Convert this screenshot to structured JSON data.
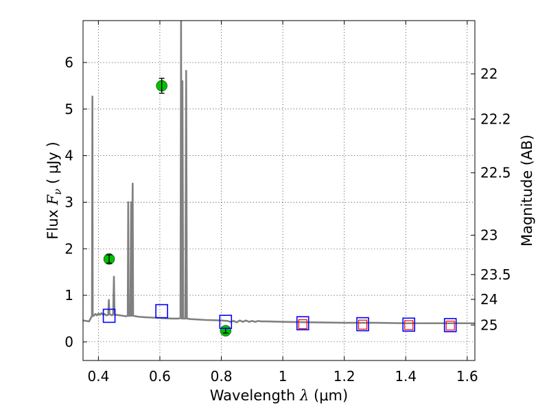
{
  "chart_data": {
    "type": "scatter",
    "xlabel": {
      "prefix": "Wavelength  ",
      "symbol": "λ",
      "units": " (μm)"
    },
    "ylabel": {
      "prefix": "Flux  ",
      "symbol": "F",
      "subscript": "ν",
      "units": "  ( μJy )"
    },
    "y2label": "Magnitude (AB)",
    "xlim": [
      0.35,
      1.625
    ],
    "ylim": [
      -0.4,
      6.9
    ],
    "x_ticks": [
      0.4,
      0.6,
      0.8,
      1,
      1.2,
      1.4,
      1.6
    ],
    "x_tick_labels": [
      "0.4",
      "0.6",
      "0.8",
      "1",
      "1.2",
      "1.4",
      "1.6"
    ],
    "y_ticks": [
      0,
      1,
      2,
      3,
      4,
      5,
      6
    ],
    "y_tick_labels": [
      "0",
      "1",
      "2",
      "3",
      "4",
      "5",
      "6"
    ],
    "y2_ticks": [
      {
        "mag": 22,
        "label": "22"
      },
      {
        "mag": 22.2,
        "label": "22.2"
      },
      {
        "mag": 22.5,
        "label": "22.5"
      },
      {
        "mag": 23,
        "label": "23"
      },
      {
        "mag": 23.5,
        "label": "23.5"
      },
      {
        "mag": 24,
        "label": "24"
      },
      {
        "mag": 25,
        "label": "25"
      }
    ],
    "grid": true,
    "series": [
      {
        "kind": "spectrum",
        "color": "#808080",
        "points": [
          [
            0.35,
            0.46
          ],
          [
            0.36,
            0.45
          ],
          [
            0.37,
            0.44
          ],
          [
            0.372,
            0.47
          ],
          [
            0.376,
            0.52
          ],
          [
            0.379,
            0.55
          ],
          [
            0.3805,
            5.27
          ],
          [
            0.3815,
            0.56
          ],
          [
            0.385,
            0.56
          ],
          [
            0.39,
            0.6
          ],
          [
            0.395,
            0.57
          ],
          [
            0.4,
            0.61
          ],
          [
            0.405,
            0.58
          ],
          [
            0.41,
            0.62
          ],
          [
            0.415,
            0.58
          ],
          [
            0.42,
            0.6
          ],
          [
            0.425,
            0.57
          ],
          [
            0.432,
            0.58
          ],
          [
            0.434,
            0.9
          ],
          [
            0.436,
            0.6
          ],
          [
            0.44,
            0.58
          ],
          [
            0.445,
            0.57
          ],
          [
            0.448,
            0.6
          ],
          [
            0.4505,
            1.4
          ],
          [
            0.4525,
            0.58
          ],
          [
            0.46,
            0.58
          ],
          [
            0.47,
            0.57
          ],
          [
            0.48,
            0.56
          ],
          [
            0.49,
            0.55
          ],
          [
            0.4955,
            0.56
          ],
          [
            0.497,
            3.0
          ],
          [
            0.4985,
            0.56
          ],
          [
            0.504,
            0.56
          ],
          [
            0.5065,
            3.0
          ],
          [
            0.508,
            0.56
          ],
          [
            0.5115,
            3.4
          ],
          [
            0.513,
            0.56
          ],
          [
            0.53,
            0.54
          ],
          [
            0.55,
            0.53
          ],
          [
            0.58,
            0.52
          ],
          [
            0.61,
            0.51
          ],
          [
            0.64,
            0.5
          ],
          [
            0.66,
            0.5
          ],
          [
            0.667,
            0.51
          ],
          [
            0.669,
            6.9
          ],
          [
            0.671,
            0.5
          ],
          [
            0.6735,
            5.6
          ],
          [
            0.676,
            0.5
          ],
          [
            0.683,
            0.5
          ],
          [
            0.6855,
            5.82
          ],
          [
            0.688,
            0.5
          ],
          [
            0.7,
            0.49
          ],
          [
            0.75,
            0.47
          ],
          [
            0.8,
            0.46
          ],
          [
            0.82,
            0.45
          ],
          [
            0.83,
            0.43
          ],
          [
            0.84,
            0.45
          ],
          [
            0.85,
            0.42
          ],
          [
            0.86,
            0.46
          ],
          [
            0.87,
            0.43
          ],
          [
            0.88,
            0.46
          ],
          [
            0.89,
            0.43
          ],
          [
            0.9,
            0.45
          ],
          [
            0.91,
            0.43
          ],
          [
            0.92,
            0.45
          ],
          [
            0.93,
            0.44
          ],
          [
            0.95,
            0.44
          ],
          [
            1.0,
            0.43
          ],
          [
            1.1,
            0.42
          ],
          [
            1.2,
            0.41
          ],
          [
            1.3,
            0.41
          ],
          [
            1.4,
            0.4
          ],
          [
            1.5,
            0.4
          ],
          [
            1.6,
            0.4
          ],
          [
            1.625,
            0.4
          ]
        ]
      },
      {
        "kind": "observed",
        "color": "#00c000",
        "points": [
          {
            "x": 0.435,
            "y": 1.78,
            "err": 0.09
          },
          {
            "x": 0.606,
            "y": 5.5,
            "err": 0.16
          },
          {
            "x": 0.814,
            "y": 0.24,
            "err": 0.05
          }
        ]
      },
      {
        "kind": "model-bands",
        "color": "#0000ff",
        "points": [
          {
            "x": 0.435,
            "y": 0.56
          },
          {
            "x": 0.606,
            "y": 0.66
          },
          {
            "x": 0.814,
            "y": 0.43
          },
          {
            "x": 1.065,
            "y": 0.4
          },
          {
            "x": 1.26,
            "y": 0.38
          },
          {
            "x": 1.41,
            "y": 0.37
          },
          {
            "x": 1.545,
            "y": 0.36
          }
        ]
      },
      {
        "kind": "model-bands-nir",
        "color": "#ff0000",
        "points": [
          {
            "x": 1.065,
            "y": 0.38
          },
          {
            "x": 1.26,
            "y": 0.37
          },
          {
            "x": 1.41,
            "y": 0.36
          },
          {
            "x": 1.545,
            "y": 0.35
          }
        ]
      }
    ]
  }
}
